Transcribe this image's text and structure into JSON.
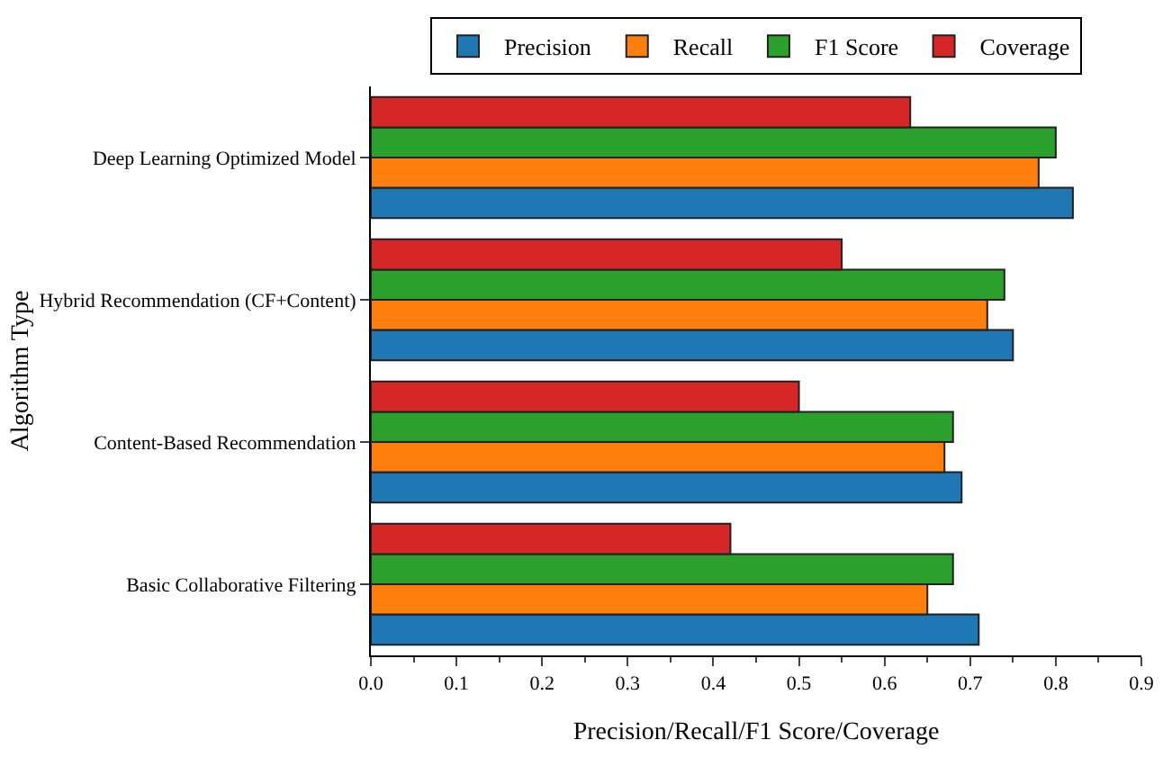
{
  "chart_data": {
    "type": "bar",
    "orientation": "horizontal",
    "xlabel": "Precision/Recall/F1 Score/Coverage",
    "ylabel": "Algorithm Type",
    "categories": [
      "Deep Learning Optimized Model",
      "Hybrid Recommendation (CF+Content)",
      "Content-Based Recommendation",
      "Basic Collaborative Filtering"
    ],
    "series": [
      {
        "name": "Precision",
        "color": "#1f77b4",
        "values": [
          0.82,
          0.75,
          0.69,
          0.71
        ]
      },
      {
        "name": "Recall",
        "color": "#ff7f0e",
        "values": [
          0.78,
          0.72,
          0.67,
          0.65
        ]
      },
      {
        "name": "F1 Score",
        "color": "#2ca02c",
        "values": [
          0.8,
          0.74,
          0.68,
          0.68
        ]
      },
      {
        "name": "Coverage",
        "color": "#d62728",
        "values": [
          0.63,
          0.55,
          0.5,
          0.42
        ]
      }
    ],
    "xlim": [
      0,
      0.9
    ],
    "xticks": [
      {
        "value": 0,
        "label": "0.0"
      },
      0.1,
      0.2,
      0.3,
      0.4,
      0.5,
      0.6,
      0.7,
      0.8,
      0.9
    ],
    "legend": "top"
  }
}
